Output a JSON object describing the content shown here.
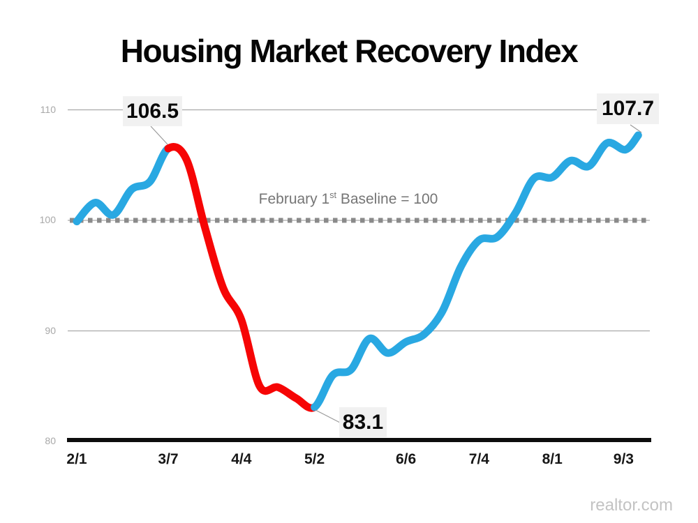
{
  "title": "Housing Market Recovery Index",
  "watermark": "realtor.com",
  "colors": {
    "blue": "#29A8E2",
    "red": "#F60505",
    "baseline_dash": "#8A8A8A",
    "gridline": "#A9A9A9",
    "axis": "#0D0D0D",
    "connector": "#9A9A9A",
    "callout_bg": "#F1F1F1"
  },
  "baseline_label": {
    "prefix": "February 1",
    "sup": "st",
    "suffix": " Baseline = 100"
  },
  "chart_data": {
    "type": "line",
    "title": "Housing Market Recovery Index",
    "xlabel": "",
    "ylabel": "",
    "ylim": [
      80,
      112
    ],
    "y_ticks": [
      110,
      100,
      90,
      80
    ],
    "baseline": 100,
    "grid": "horizontal",
    "legend": "none",
    "x_ticks": [
      {
        "label": "2/1",
        "t": 0
      },
      {
        "label": "3/7",
        "t": 5
      },
      {
        "label": "4/4",
        "t": 9
      },
      {
        "label": "5/2",
        "t": 13
      },
      {
        "label": "6/6",
        "t": 18
      },
      {
        "label": "7/4",
        "t": 22
      },
      {
        "label": "8/1",
        "t": 26
      },
      {
        "label": "9/3",
        "t": 29.9
      }
    ],
    "series": [
      {
        "name": "Housing Market Recovery Index (weekly)",
        "dates": [
          "2/1",
          "2/8",
          "2/15",
          "2/22",
          "2/29",
          "3/7",
          "3/14",
          "3/21",
          "3/28",
          "4/4",
          "4/11",
          "4/18",
          "4/25",
          "5/2",
          "5/9",
          "5/16",
          "5/23",
          "5/30",
          "6/6",
          "6/13",
          "6/20",
          "6/27",
          "7/4",
          "7/11",
          "7/18",
          "7/25",
          "8/1",
          "8/8",
          "8/15",
          "8/22",
          "8/29",
          "9/3"
        ],
        "t": [
          0,
          1,
          2,
          3,
          4,
          5,
          6,
          7,
          8,
          9,
          10,
          11,
          12,
          13,
          14,
          15,
          16,
          17,
          18,
          19,
          20,
          21,
          22,
          23,
          24,
          25,
          26,
          27,
          28,
          29,
          30,
          30.7
        ],
        "values": [
          99.9,
          101.6,
          100.5,
          102.8,
          103.5,
          106.5,
          105.5,
          99.4,
          93.9,
          91.0,
          85.0,
          84.9,
          83.9,
          83.1,
          86.0,
          86.5,
          89.3,
          88.0,
          89.0,
          89.7,
          91.8,
          95.8,
          98.2,
          98.5,
          100.7,
          103.8,
          103.9,
          105.4,
          104.9,
          107.0,
          106.4,
          107.7
        ]
      }
    ],
    "segments": [
      {
        "name": "rise-to-peak",
        "color": "blue",
        "from": 0,
        "to": 5
      },
      {
        "name": "decline",
        "color": "red",
        "from": 5,
        "to": 13
      },
      {
        "name": "recovery",
        "color": "blue",
        "from": 13,
        "to": 31
      }
    ],
    "annotations": [
      {
        "text": "106.5",
        "point": "3/7",
        "value": 106.5
      },
      {
        "text": "83.1",
        "point": "5/2",
        "value": 83.1
      },
      {
        "text": "107.7",
        "point": "9/3",
        "value": 107.7
      }
    ]
  }
}
